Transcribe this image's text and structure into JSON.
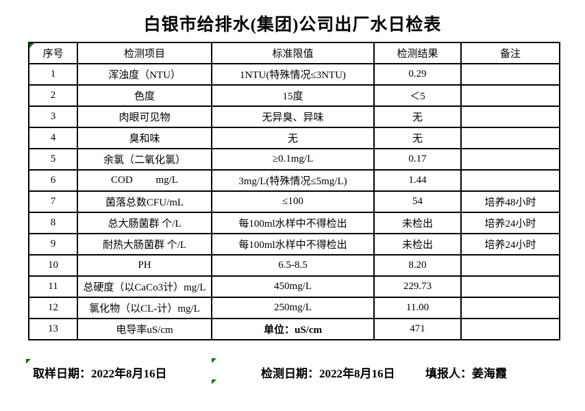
{
  "title": "白银市给排水(集团)公司出厂水日检表",
  "table": {
    "headers": [
      "序号",
      "检测项目",
      "标准限值",
      "检测结果",
      "备注"
    ],
    "rows": [
      [
        "1",
        "浑浊度（NTU）",
        "1NTU(特殊情况≤3NTU)",
        "0.29",
        ""
      ],
      [
        "2",
        "色度",
        "15度",
        "＜5",
        ""
      ],
      [
        "3",
        "肉眼可见物",
        "无异臭、异味",
        "无",
        ""
      ],
      [
        "4",
        "臭和味",
        "无",
        "无",
        ""
      ],
      [
        "5",
        "余氯（二氧化氯）",
        "≥0.1mg/L",
        "0.17",
        ""
      ],
      [
        "6",
        "COD         mg/L",
        "3mg/L(特殊情况≤5mg/L)",
        "1.44",
        ""
      ],
      [
        "7",
        "菌落总数CFU/mL",
        "≤100",
        "54",
        "培养48小时"
      ],
      [
        "8",
        "总大肠菌群 个/L",
        "每100ml水样中不得检出",
        "未检出",
        "培养24小时"
      ],
      [
        "9",
        "耐热大肠菌群 个/L",
        "每100ml水样中不得检出",
        "未检出",
        "培养24小时"
      ],
      [
        "10",
        "PH",
        "6.5-8.5",
        "8.20",
        ""
      ],
      [
        "11",
        "总硬度（以CaCo3计）mg/L",
        "450mg/L",
        "229.73",
        ""
      ],
      [
        "12",
        "氯化物（以CL-计）mg/L",
        "250mg/L",
        "11.00",
        ""
      ],
      [
        "13",
        "电导率uS/cm",
        "单位：uS/cm",
        "471",
        ""
      ]
    ]
  },
  "footer": {
    "sample_date": "取样日期：2022年8月16日",
    "test_date": "检测日期：2022年8月16日",
    "reporter": "填报人：姜海霞"
  },
  "colors": {
    "error_indicator_green": "#007e00",
    "grid_black": "#000000"
  }
}
